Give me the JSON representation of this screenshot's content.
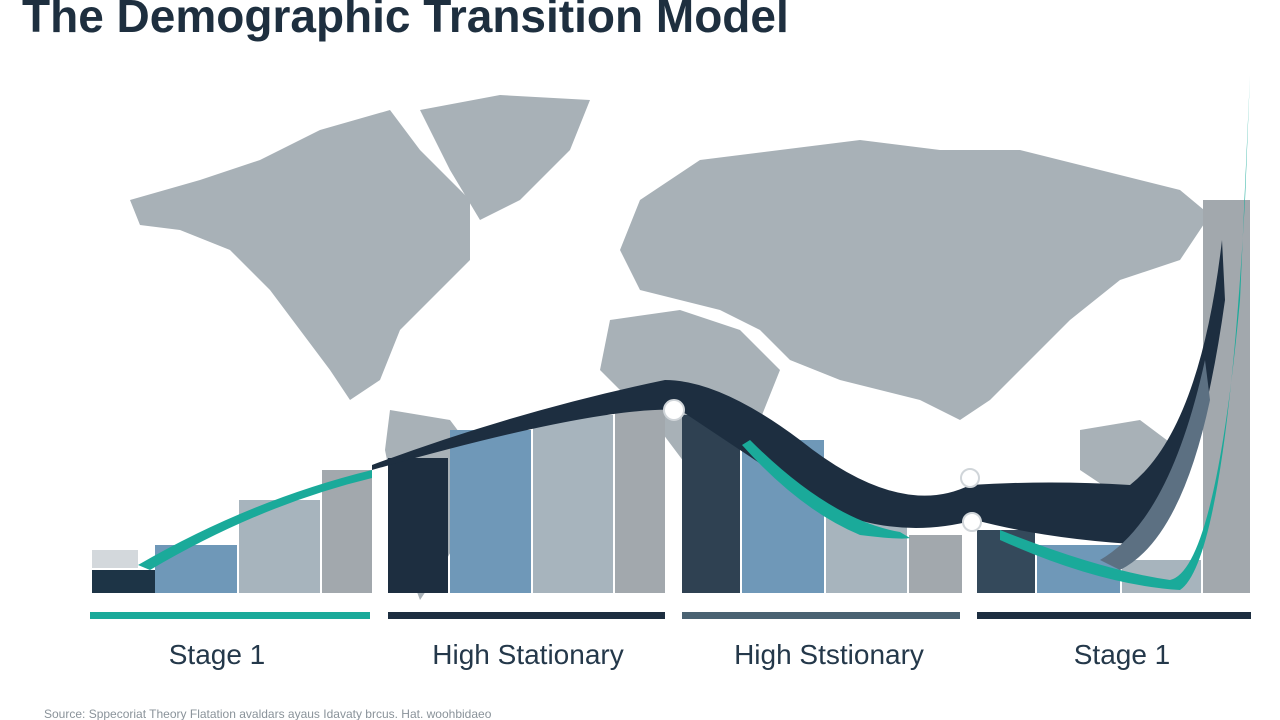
{
  "header": {
    "title": "The Demographic Transition Model"
  },
  "stages": [
    {
      "label": "Stage 1"
    },
    {
      "label": "High Stationary"
    },
    {
      "label": "High Ststionary"
    },
    {
      "label": "Stage 1"
    }
  ],
  "footer": {
    "source": "Source: Sppecoriat Theory Flatation avaldars ayaus Idavaty brcus. Hat. woohbidaeo"
  }
}
